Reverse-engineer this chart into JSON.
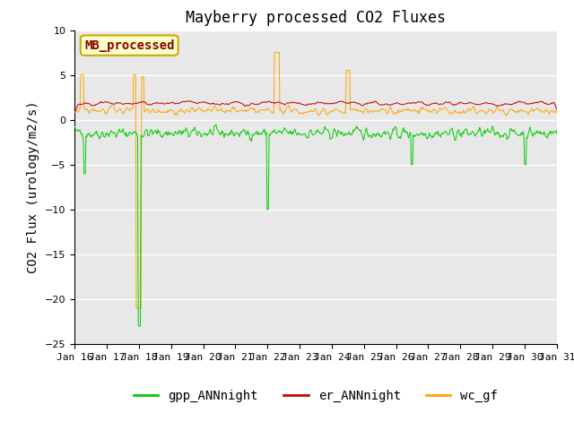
{
  "title": "Mayberry processed CO2 Fluxes",
  "ylabel": "CO2 Flux (urology/m2/s)",
  "ylim": [
    -25,
    10
  ],
  "yticks": [
    -25,
    -20,
    -15,
    -10,
    -5,
    0,
    5,
    10
  ],
  "n_points": 720,
  "colors": {
    "gpp": "#00cc00",
    "er": "#cc0000",
    "wc": "#ffa500",
    "background": "#e8e8e8",
    "figure_bg": "#ffffff",
    "legend_box_bg": "#ffffcc",
    "legend_box_edge": "#ccaa00",
    "legend_text": "#8b0000",
    "grid": "#ffffff"
  },
  "legend_label": "MB_processed",
  "legend_label_color": "#8b0000",
  "line_labels": [
    "gpp_ANNnight",
    "er_ANNnight",
    "wc_gf"
  ],
  "title_fontsize": 12,
  "axis_fontsize": 10,
  "tick_fontsize": 8,
  "legend_fontsize": 10,
  "start_day": 16,
  "n_days": 16
}
